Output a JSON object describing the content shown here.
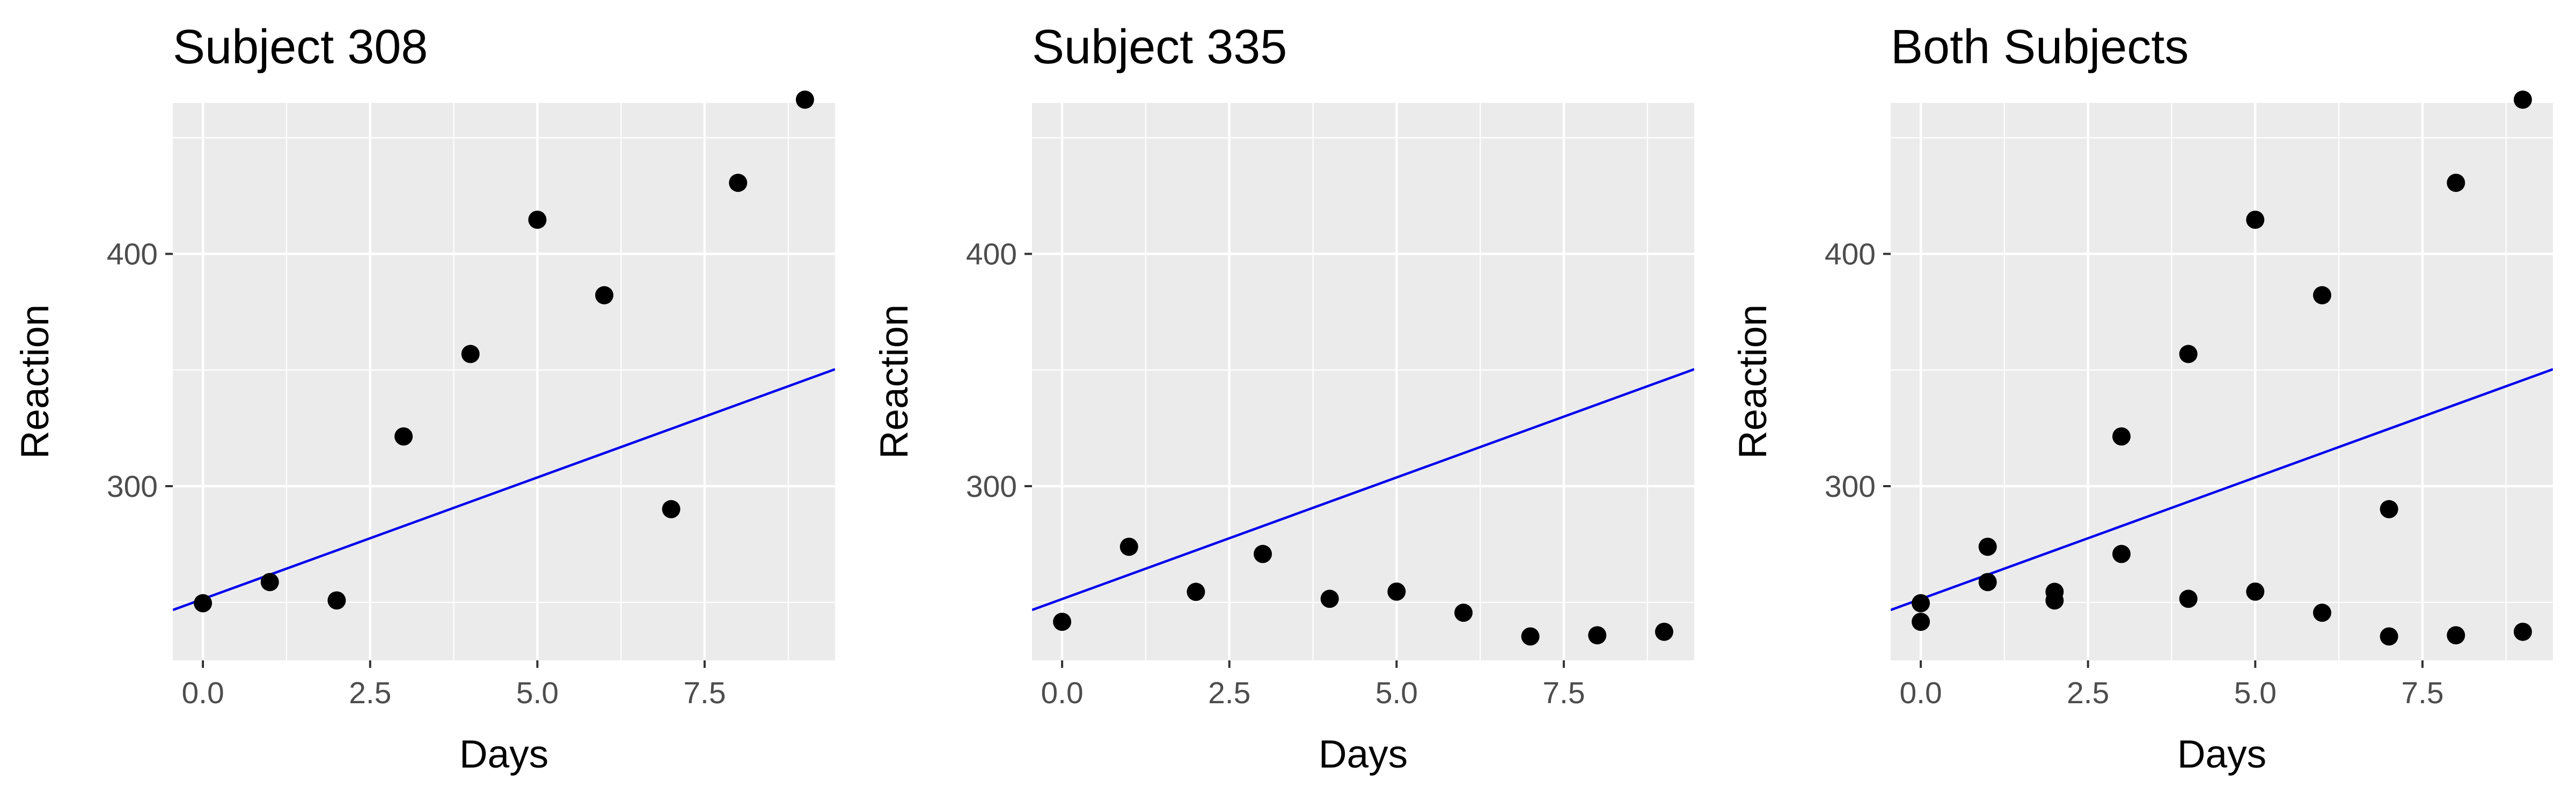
{
  "chart_data": [
    {
      "type": "scatter",
      "title": "Subject 308",
      "xlabel": "Days",
      "ylabel": "Reaction",
      "xlim": [
        -0.45,
        9.45
      ],
      "ylim": [
        225,
        465
      ],
      "xticks": [
        0,
        2.5,
        5,
        7.5
      ],
      "xtick_labels": [
        "0.0",
        "2.5",
        "5.0",
        "7.5"
      ],
      "yticks": [
        300,
        400
      ],
      "ytick_labels": [
        "300",
        "400"
      ],
      "grid": true,
      "x": [
        0,
        1,
        2,
        3,
        4,
        5,
        6,
        7,
        8,
        9
      ],
      "y": [
        249.6,
        258.7,
        250.8,
        321.4,
        356.9,
        414.7,
        382.2,
        290.1,
        430.6,
        466.4
      ],
      "fit_line": {
        "intercept": 251.4,
        "slope": 10.47
      }
    },
    {
      "type": "scatter",
      "title": "Subject 335",
      "xlabel": "Days",
      "ylabel": "Reaction",
      "xlim": [
        -0.45,
        9.45
      ],
      "ylim": [
        225,
        465
      ],
      "xticks": [
        0,
        2.5,
        5,
        7.5
      ],
      "xtick_labels": [
        "0.0",
        "2.5",
        "5.0",
        "7.5"
      ],
      "yticks": [
        300,
        400
      ],
      "ytick_labels": [
        "300",
        "400"
      ],
      "grid": true,
      "x": [
        0,
        1,
        2,
        3,
        4,
        5,
        6,
        7,
        8,
        9
      ],
      "y": [
        241.6,
        273.9,
        254.5,
        270.8,
        251.5,
        254.6,
        245.5,
        235.3,
        235.8,
        237.3
      ],
      "fit_line": {
        "intercept": 251.4,
        "slope": 10.47
      }
    },
    {
      "type": "scatter",
      "title": "Both Subjects",
      "xlabel": "Days",
      "ylabel": "Reaction",
      "xlim": [
        -0.45,
        9.45
      ],
      "ylim": [
        225,
        465
      ],
      "xticks": [
        0,
        2.5,
        5,
        7.5
      ],
      "xtick_labels": [
        "0.0",
        "2.5",
        "5.0",
        "7.5"
      ],
      "yticks": [
        300,
        400
      ],
      "ytick_labels": [
        "300",
        "400"
      ],
      "grid": true,
      "x": [
        0,
        1,
        2,
        3,
        4,
        5,
        6,
        7,
        8,
        9,
        0,
        1,
        2,
        3,
        4,
        5,
        6,
        7,
        8,
        9
      ],
      "y": [
        249.6,
        258.7,
        250.8,
        321.4,
        356.9,
        414.7,
        382.2,
        290.1,
        430.6,
        466.4,
        241.6,
        273.9,
        254.5,
        270.8,
        251.5,
        254.6,
        245.5,
        235.3,
        235.8,
        237.3
      ],
      "fit_line": {
        "intercept": 251.4,
        "slope": 10.47
      }
    }
  ],
  "colors": {
    "panel_background": "#ebebeb",
    "grid": "#ffffff",
    "points": "#000000",
    "fit_line": "#0000ee",
    "tick_labels": "#4d4d4d",
    "text": "#000000"
  }
}
